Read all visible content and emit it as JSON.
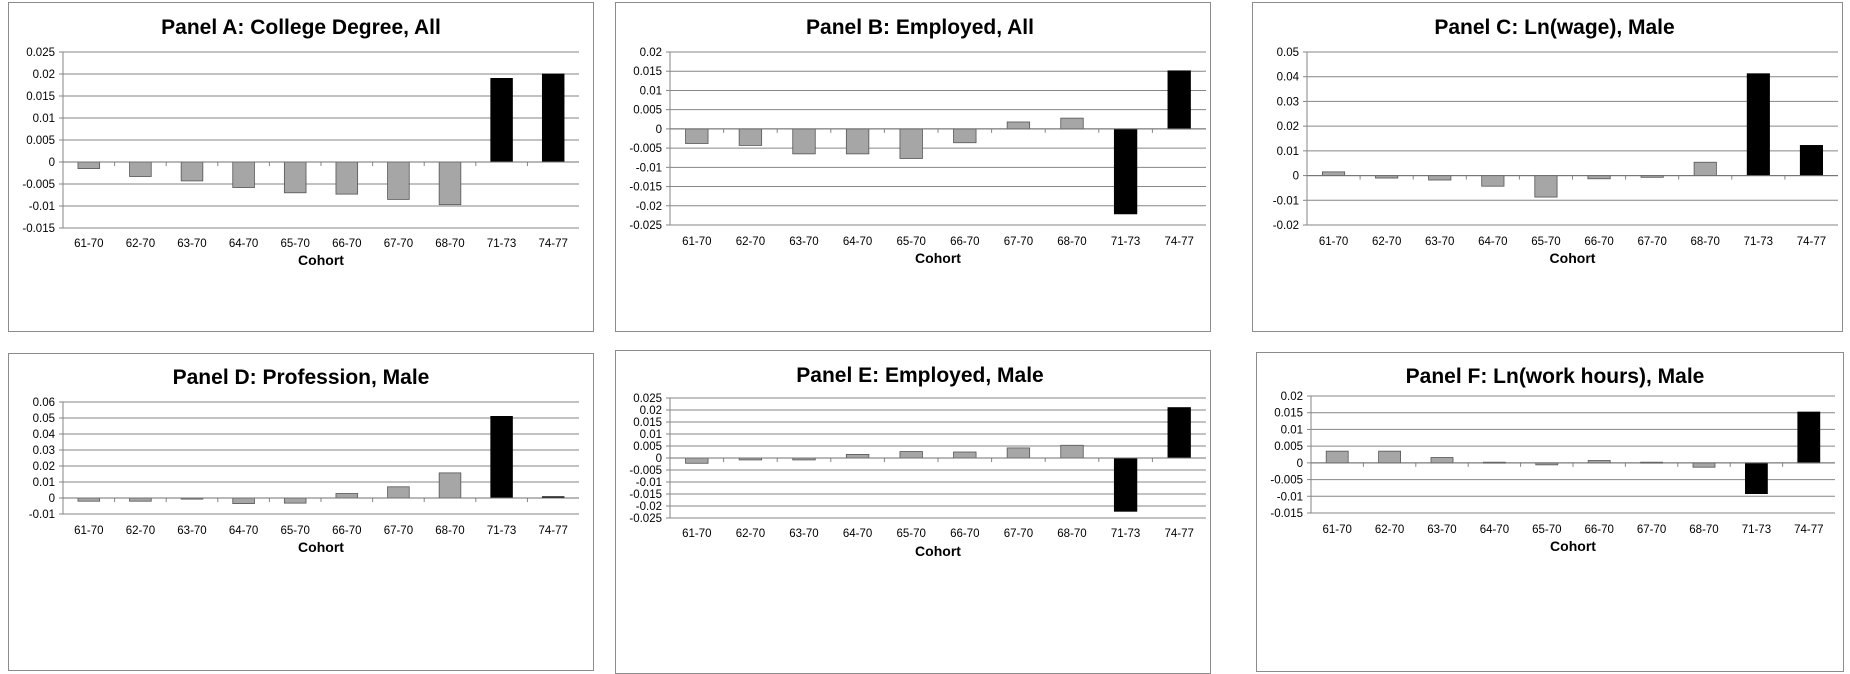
{
  "chart_data": [
    {
      "id": "A",
      "type": "bar",
      "title": "Panel A: College Degree, All",
      "xlabel": "Cohort",
      "categories": [
        "61-70",
        "62-70",
        "63-70",
        "64-70",
        "65-70",
        "66-70",
        "67-70",
        "68-70",
        "71-73",
        "74-77"
      ],
      "values": [
        -0.0015,
        -0.0033,
        -0.0043,
        -0.0058,
        -0.007,
        -0.0073,
        -0.0085,
        -0.0097,
        0.019,
        0.02
      ],
      "highlight": [
        false,
        false,
        false,
        false,
        false,
        false,
        false,
        false,
        true,
        true
      ],
      "ylim": [
        -0.015,
        0.025
      ],
      "yticks": [
        "0.025",
        "0.02",
        "0.015",
        "0.01",
        "0.005",
        "0",
        "-0.005",
        "-0.01",
        "-0.015"
      ],
      "grid": true
    },
    {
      "id": "B",
      "type": "bar",
      "title": "Panel B: Employed, All",
      "xlabel": "Cohort",
      "categories": [
        "61-70",
        "62-70",
        "63-70",
        "64-70",
        "65-70",
        "66-70",
        "67-70",
        "68-70",
        "71-73",
        "74-77"
      ],
      "values": [
        -0.0038,
        -0.0043,
        -0.0065,
        -0.0065,
        -0.0077,
        -0.0036,
        0.0018,
        0.0028,
        -0.0221,
        0.0151
      ],
      "highlight": [
        false,
        false,
        false,
        false,
        false,
        false,
        false,
        false,
        true,
        true
      ],
      "ylim": [
        -0.025,
        0.02
      ],
      "yticks": [
        "0.02",
        "0.015",
        "0.01",
        "0.005",
        "0",
        "-0.005",
        "-0.01",
        "-0.015",
        "-0.02",
        "-0.025"
      ],
      "grid": true
    },
    {
      "id": "C",
      "type": "bar",
      "title": "Panel C: Ln(wage), Male",
      "xlabel": "Cohort",
      "categories": [
        "61-70",
        "62-70",
        "63-70",
        "64-70",
        "65-70",
        "66-70",
        "67-70",
        "68-70",
        "71-73",
        "74-77"
      ],
      "values": [
        0.0015,
        -0.001,
        -0.0018,
        -0.0043,
        -0.0087,
        -0.0013,
        -0.0007,
        0.0054,
        0.0412,
        0.0122
      ],
      "highlight": [
        false,
        false,
        false,
        false,
        false,
        false,
        false,
        false,
        true,
        true
      ],
      "ylim": [
        -0.02,
        0.05
      ],
      "yticks": [
        "0.05",
        "0.04",
        "0.03",
        "0.02",
        "0.01",
        "0",
        "-0.01",
        "-0.02"
      ],
      "grid": true
    },
    {
      "id": "D",
      "type": "bar",
      "title": "Panel D: Profession, Male",
      "xlabel": "Cohort",
      "categories": [
        "61-70",
        "62-70",
        "63-70",
        "64-70",
        "65-70",
        "66-70",
        "67-70",
        "68-70",
        "71-73",
        "74-77"
      ],
      "values": [
        -0.002,
        -0.002,
        -0.0007,
        -0.0035,
        -0.0032,
        0.0028,
        0.007,
        0.0157,
        0.051,
        0.0008
      ],
      "highlight": [
        false,
        false,
        false,
        false,
        false,
        false,
        false,
        false,
        true,
        true
      ],
      "ylim": [
        -0.01,
        0.06
      ],
      "yticks": [
        "0.06",
        "0.05",
        "0.04",
        "0.03",
        "0.02",
        "0.01",
        "0",
        "-0.01"
      ],
      "grid": true
    },
    {
      "id": "E",
      "type": "bar",
      "title": "Panel E: Employed, Male",
      "xlabel": "Cohort",
      "categories": [
        "61-70",
        "62-70",
        "63-70",
        "64-70",
        "65-70",
        "66-70",
        "67-70",
        "68-70",
        "71-73",
        "74-77"
      ],
      "values": [
        -0.0022,
        -0.0008,
        -0.0008,
        0.0015,
        0.0027,
        0.0025,
        0.0042,
        0.0053,
        -0.0222,
        0.021
      ],
      "highlight": [
        false,
        false,
        false,
        false,
        false,
        false,
        false,
        false,
        true,
        true
      ],
      "ylim": [
        -0.025,
        0.025
      ],
      "yticks": [
        "0.025",
        "0.02",
        "0.015",
        "0.01",
        "0.005",
        "0",
        "-0.005",
        "-0.01",
        "-0.015",
        "-0.02",
        "-0.025"
      ],
      "grid": true
    },
    {
      "id": "F",
      "type": "bar",
      "title": "Panel F: Ln(work hours), Male",
      "xlabel": "Cohort",
      "categories": [
        "61-70",
        "62-70",
        "63-70",
        "64-70",
        "65-70",
        "66-70",
        "67-70",
        "68-70",
        "71-73",
        "74-77"
      ],
      "values": [
        0.0035,
        0.0035,
        0.0016,
        0.0002,
        -0.0006,
        0.0007,
        0.0002,
        -0.0013,
        -0.0092,
        0.0152
      ],
      "highlight": [
        false,
        false,
        false,
        false,
        false,
        false,
        false,
        false,
        true,
        true
      ],
      "ylim": [
        -0.015,
        0.02
      ],
      "yticks": [
        "0.02",
        "0.015",
        "0.01",
        "0.005",
        "0",
        "-0.005",
        "-0.01",
        "-0.015"
      ],
      "grid": true
    }
  ],
  "colors": {
    "bar_normal": "#a6a6a6",
    "bar_highlight": "#000000",
    "gridline": "#868686",
    "axis": "#868686",
    "frame": "#8c8c8c"
  }
}
